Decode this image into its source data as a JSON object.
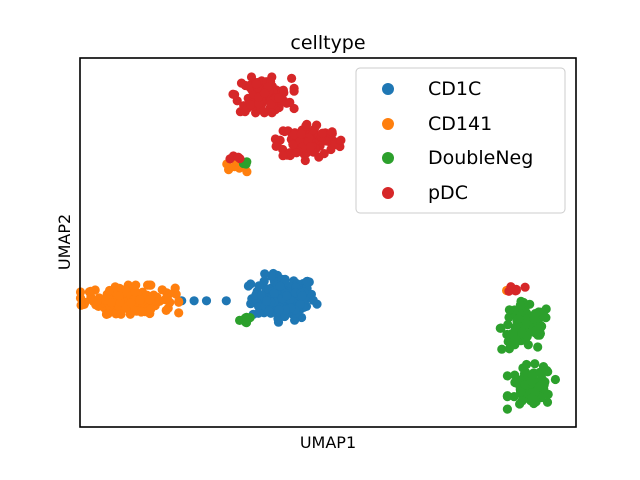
{
  "chart_data": {
    "type": "scatter",
    "title": "celltype",
    "xlabel": "UMAP1",
    "ylabel": "UMAP2",
    "xticks": [],
    "yticks": [],
    "xlim": [
      0,
      100
    ],
    "ylim": [
      0,
      100
    ],
    "grid": false,
    "legend": {
      "position": "top-right",
      "entries": [
        "CD1C",
        "CD141",
        "DoubleNeg",
        "pDC"
      ]
    },
    "colors": {
      "CD1C": "#1f77b4",
      "CD141": "#ff7f0e",
      "DoubleNeg": "#2ca02c",
      "pDC": "#d62728"
    },
    "series": [
      {
        "name": "CD1C",
        "clusters": [
          {
            "cx": 41,
            "cy": 35,
            "sx": 3.2,
            "sy": 3.0,
            "n": 150
          },
          {
            "cx": 20.5,
            "cy": 34.2,
            "sx": 0.1,
            "sy": 0.1,
            "n": 1
          },
          {
            "cx": 23,
            "cy": 34.2,
            "sx": 0.1,
            "sy": 0.1,
            "n": 1
          },
          {
            "cx": 25.5,
            "cy": 34.2,
            "sx": 0.1,
            "sy": 0.1,
            "n": 1
          },
          {
            "cx": 29.5,
            "cy": 34.2,
            "sx": 0.1,
            "sy": 0.1,
            "n": 1
          }
        ]
      },
      {
        "name": "CD141",
        "clusters": [
          {
            "cx": 10,
            "cy": 34.5,
            "sx": 4.5,
            "sy": 1.8,
            "n": 160
          },
          {
            "cx": 31,
            "cy": 70.5,
            "sx": 1.2,
            "sy": 0.6,
            "n": 8
          },
          {
            "cx": 86,
            "cy": 37,
            "sx": 0.2,
            "sy": 0.2,
            "n": 1
          }
        ]
      },
      {
        "name": "DoubleNeg",
        "clusters": [
          {
            "cx": 90,
            "cy": 27,
            "sx": 2.5,
            "sy": 3.2,
            "n": 90
          },
          {
            "cx": 91,
            "cy": 11,
            "sx": 2.2,
            "sy": 2.8,
            "n": 70
          },
          {
            "cx": 33,
            "cy": 72,
            "sx": 0.5,
            "sy": 0.4,
            "n": 3
          },
          {
            "cx": 33.5,
            "cy": 29,
            "sx": 0.6,
            "sy": 0.5,
            "n": 6
          }
        ]
      },
      {
        "name": "pDC",
        "clusters": [
          {
            "cx": 37,
            "cy": 90,
            "sx": 2.8,
            "sy": 2.2,
            "n": 110
          },
          {
            "cx": 46,
            "cy": 77.5,
            "sx": 3.0,
            "sy": 2.4,
            "n": 110
          },
          {
            "cx": 32,
            "cy": 73,
            "sx": 0.8,
            "sy": 0.3,
            "n": 4
          },
          {
            "cx": 88,
            "cy": 37.5,
            "sx": 0.8,
            "sy": 0.5,
            "n": 6
          }
        ]
      }
    ]
  }
}
